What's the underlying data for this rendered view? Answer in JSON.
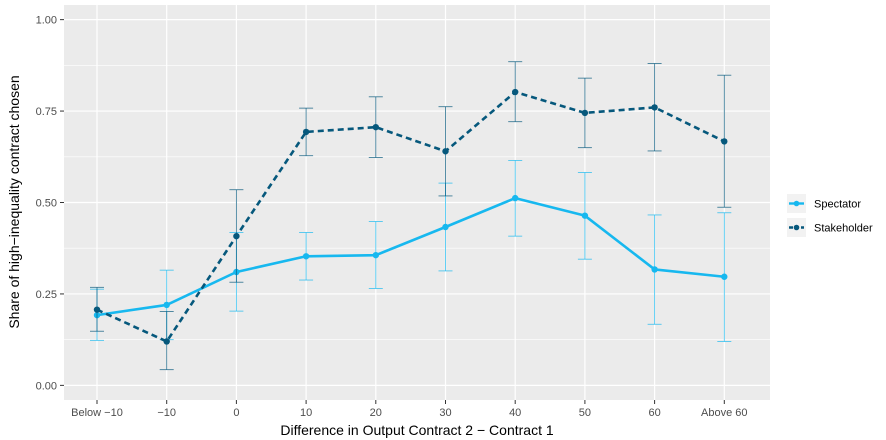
{
  "chart_data": {
    "type": "line",
    "title": "",
    "xlabel": "Difference in Output Contract 2 − Contract 1",
    "ylabel": "Share of high−inequality contract chosen",
    "categories": [
      "Below −10",
      "−10",
      "0",
      "10",
      "20",
      "30",
      "40",
      "50",
      "60",
      "Above 60"
    ],
    "ylim": [
      -0.04,
      1.04
    ],
    "yticks": [
      0.0,
      0.25,
      0.5,
      0.75,
      1.0
    ],
    "ytick_labels": [
      "0.00",
      "0.25",
      "0.50",
      "0.75",
      "1.00"
    ],
    "grid": true,
    "legend_position": "right",
    "series": [
      {
        "name": "Spectator",
        "color": "#17b8ef",
        "dash": "solid",
        "values": [
          0.192,
          0.22,
          0.31,
          0.353,
          0.356,
          0.433,
          0.512,
          0.464,
          0.317,
          0.297
        ],
        "lower": [
          0.123,
          0.125,
          0.203,
          0.288,
          0.265,
          0.313,
          0.408,
          0.345,
          0.167,
          0.12
        ],
        "upper": [
          0.263,
          0.315,
          0.418,
          0.418,
          0.448,
          0.553,
          0.615,
          0.582,
          0.466,
          0.472
        ]
      },
      {
        "name": "Stakeholder",
        "color": "#06587c",
        "dash": "dashed",
        "values": [
          0.207,
          0.12,
          0.408,
          0.693,
          0.706,
          0.64,
          0.802,
          0.745,
          0.76,
          0.667
        ],
        "lower": [
          0.148,
          0.043,
          0.282,
          0.628,
          0.623,
          0.518,
          0.721,
          0.65,
          0.641,
          0.487
        ],
        "upper": [
          0.268,
          0.202,
          0.535,
          0.758,
          0.789,
          0.762,
          0.885,
          0.84,
          0.88,
          0.848
        ]
      }
    ]
  }
}
